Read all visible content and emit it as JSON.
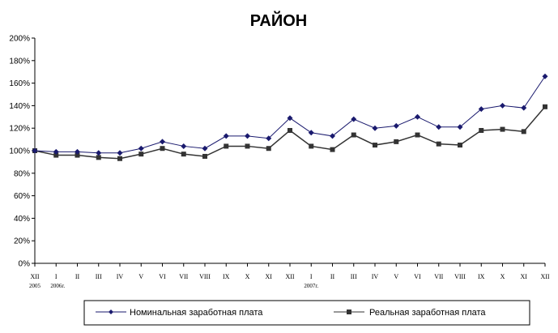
{
  "chart_data": {
    "type": "line",
    "title": "РАЙОН",
    "xlabel": "",
    "ylabel": "",
    "categories": [
      "XII",
      "I",
      "II",
      "III",
      "IV",
      "V",
      "VI",
      "VII",
      "VIII",
      "IX",
      "X",
      "XI",
      "XII",
      "I",
      "II",
      "III",
      "IV",
      "V",
      "VI",
      "VII",
      "VIII",
      "IX",
      "X",
      "XI",
      "XII"
    ],
    "year_labels": [
      {
        "index": 0,
        "text": "2005"
      },
      {
        "index": 1,
        "text": "2006г."
      },
      {
        "index": 13,
        "text": "2007г."
      }
    ],
    "y_ticks": [
      "0%",
      "20%",
      "40%",
      "60%",
      "80%",
      "100%",
      "120%",
      "140%",
      "160%",
      "180%",
      "200%"
    ],
    "ylim": [
      0,
      200
    ],
    "grid": false,
    "legend_position": "bottom",
    "series": [
      {
        "name": "Номинальная заработная плата",
        "marker": "diamond",
        "color": "#1a1a6e",
        "values": [
          100,
          99,
          99,
          98,
          98,
          102,
          108,
          104,
          102,
          113,
          113,
          111,
          129,
          116,
          113,
          128,
          120,
          122,
          130,
          121,
          121,
          137,
          140,
          138,
          166
        ]
      },
      {
        "name": "Реальная заработная плата",
        "marker": "square",
        "color": "#333333",
        "values": [
          100,
          96,
          96,
          94,
          93,
          97,
          102,
          97,
          95,
          104,
          104,
          102,
          118,
          104,
          101,
          114,
          105,
          108,
          114,
          106,
          105,
          118,
          119,
          117,
          139
        ]
      }
    ]
  }
}
